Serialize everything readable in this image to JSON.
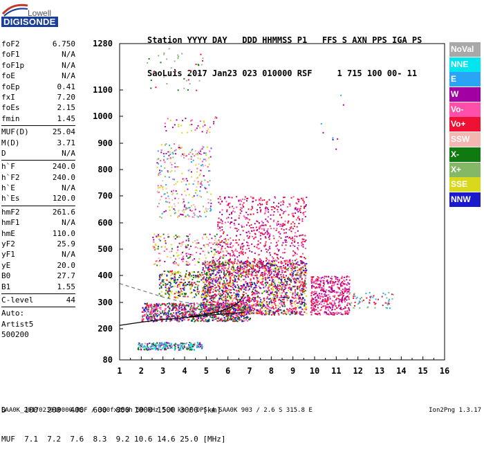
{
  "logo": {
    "brand": "Lowell",
    "product": "DIGISONDE"
  },
  "header": {
    "line1": "Station YYYY DAY   DDD HHMMSS P1   FFS S AXN PPS IGA PS",
    "line2": "SaoLuis 2017 Jan23 023 010000 RSF     1 715 100 00- 11"
  },
  "params_group1": [
    {
      "label": "foF2",
      "value": "6.750"
    },
    {
      "label": "foF1",
      "value": "N/A"
    },
    {
      "label": "foF1p",
      "value": "N/A"
    },
    {
      "label": "foE",
      "value": "N/A"
    },
    {
      "label": "foEp",
      "value": "0.41"
    },
    {
      "label": "fxI",
      "value": "7.20"
    },
    {
      "label": "foEs",
      "value": "2.15"
    },
    {
      "label": "fmin",
      "value": "1.45"
    }
  ],
  "params_group2": [
    {
      "label": "MUF(D)",
      "value": "25.04"
    },
    {
      "label": "M(D)",
      "value": "3.71"
    },
    {
      "label": "D",
      "value": "N/A"
    }
  ],
  "params_group3": [
    {
      "label": "h`F",
      "value": "240.0"
    },
    {
      "label": "h`F2",
      "value": "240.0"
    },
    {
      "label": "h`E",
      "value": "N/A"
    },
    {
      "label": "h`Es",
      "value": "120.0"
    }
  ],
  "params_group4": [
    {
      "label": "hmF2",
      "value": "261.6"
    },
    {
      "label": "hmF1",
      "value": "N/A"
    },
    {
      "label": "hmE",
      "value": "110.0"
    },
    {
      "label": "yF2",
      "value": "25.9"
    },
    {
      "label": "yF1",
      "value": "N/A"
    },
    {
      "label": "yE",
      "value": "20.0"
    },
    {
      "label": "B0",
      "value": "27.7"
    },
    {
      "label": "B1",
      "value": "1.55"
    }
  ],
  "c_level": {
    "label": "C-level",
    "value": "44"
  },
  "auto_lines": [
    "Auto:",
    "Artist5",
    "500200"
  ],
  "legend": [
    {
      "label": "NoVal",
      "color": "#a8a8a8"
    },
    {
      "label": "NNE",
      "color": "#00e5ee"
    },
    {
      "label": "E",
      "color": "#2aa4f4"
    },
    {
      "label": "W",
      "color": "#a300a3"
    },
    {
      "label": "Vo-",
      "color": "#ff4fa8"
    },
    {
      "label": "Vo+",
      "color": "#ee1133"
    },
    {
      "label": "SSW",
      "color": "#f4b6b0"
    },
    {
      "label": "X-",
      "color": "#0f7a0f"
    },
    {
      "label": "X+",
      "color": "#84b864"
    },
    {
      "label": "SSE",
      "color": "#d8d81c"
    },
    {
      "label": "NNW",
      "color": "#1a1acc"
    }
  ],
  "dmuf": {
    "d_line": "D    100  200  400  600  800 1000 1500 3000 [km]",
    "muf_line": "MUF  7.1  7.2  7.6  8.3  9.2 10.6 14.6 25.0 [MHz]"
  },
  "footer": "SAA0K_2017023010000.RSF / 300fx256h 50 kHz 5.0 km / DPS-4 SAA0K 903 / 2.6 S 315.8 E",
  "version": "Ion2Png 1.3.17",
  "chart_data": {
    "type": "scatter",
    "title": "",
    "xlabel": "",
    "ylabel": "",
    "xlim": [
      1,
      16
    ],
    "ylim": [
      80,
      1280
    ],
    "x_ticks": [
      1,
      2,
      3,
      4,
      5,
      6,
      7,
      8,
      9,
      10,
      11,
      12,
      13,
      14,
      15,
      16
    ],
    "y_ticks": [
      80,
      200,
      300,
      400,
      500,
      600,
      700,
      800,
      900,
      1000,
      1100,
      1280
    ],
    "y_scale": "nonlinear",
    "traces": [
      {
        "name": "O-trace profile",
        "color": "#000000",
        "style": "solid",
        "points": [
          [
            1.0,
            213
          ],
          [
            2.0,
            225
          ],
          [
            3.0,
            235
          ],
          [
            4.0,
            242
          ],
          [
            5.0,
            250
          ],
          [
            6.0,
            258
          ],
          [
            6.75,
            262
          ]
        ]
      },
      {
        "name": "F2 virtual trace",
        "color": "#000000",
        "style": "solid",
        "points": [
          [
            4.2,
            246
          ],
          [
            5.0,
            255
          ],
          [
            5.6,
            265
          ],
          [
            6.1,
            280
          ],
          [
            6.5,
            300
          ],
          [
            6.75,
            330
          ]
        ]
      },
      {
        "name": "X-trace",
        "color": "#777777",
        "style": "dashed",
        "points": [
          [
            1.0,
            370
          ],
          [
            2.0,
            345
          ],
          [
            3.0,
            320
          ],
          [
            4.0,
            300
          ],
          [
            5.0,
            290
          ],
          [
            5.6,
            285
          ]
        ]
      }
    ],
    "echo_regions": [
      {
        "x0": 2.0,
        "x1": 7.0,
        "y0": 230,
        "y1": 300,
        "density": 900,
        "colors": [
          "#ee1133",
          "#ff4fa8",
          "#0f7a0f",
          "#1a1acc"
        ]
      },
      {
        "x0": 4.8,
        "x1": 9.6,
        "y0": 255,
        "y1": 460,
        "density": 1800,
        "colors": [
          "#ee1133",
          "#ff4fa8",
          "#ee1133",
          "#a300a3",
          "#0f7a0f",
          "#1a1acc",
          "#d8d81c"
        ]
      },
      {
        "x0": 9.8,
        "x1": 11.6,
        "y0": 255,
        "y1": 400,
        "density": 450,
        "colors": [
          "#ee1133",
          "#ff4fa8",
          "#a300a3"
        ]
      },
      {
        "x0": 11.6,
        "x1": 13.6,
        "y0": 280,
        "y1": 340,
        "density": 60,
        "colors": [
          "#ee1133",
          "#2aa4f4",
          "#84b864"
        ]
      },
      {
        "x0": 2.8,
        "x1": 5.2,
        "y0": 320,
        "y1": 420,
        "density": 300,
        "colors": [
          "#1a1acc",
          "#0f7a0f",
          "#ee1133",
          "#d8d81c"
        ]
      },
      {
        "x0": 5.5,
        "x1": 9.6,
        "y0": 400,
        "y1": 700,
        "density": 700,
        "colors": [
          "#ee1133",
          "#ff4fa8",
          "#a300a3"
        ]
      },
      {
        "x0": 2.5,
        "x1": 6.0,
        "y0": 440,
        "y1": 560,
        "density": 240,
        "colors": [
          "#d8d81c",
          "#0f7a0f",
          "#ff4fa8",
          "#a300a3",
          "#f4b6b0"
        ]
      },
      {
        "x0": 2.7,
        "x1": 5.2,
        "y0": 620,
        "y1": 900,
        "density": 300,
        "colors": [
          "#ff4fa8",
          "#f4b6b0",
          "#d8d81c",
          "#84b864",
          "#a300a3",
          "#2aa4f4"
        ]
      },
      {
        "x0": 1.8,
        "x1": 4.8,
        "y0": 120,
        "y1": 150,
        "density": 260,
        "colors": [
          "#a300a3",
          "#2aa4f4",
          "#00e5ee",
          "#a8a8a8",
          "#0f7a0f"
        ]
      },
      {
        "x0": 2.2,
        "x1": 5.0,
        "y0": 1100,
        "y1": 1280,
        "density": 40,
        "colors": [
          "#a8a8a8",
          "#84b864",
          "#ee1133",
          "#0f7a0f"
        ]
      },
      {
        "x0": 3.0,
        "x1": 5.5,
        "y0": 940,
        "y1": 1000,
        "density": 40,
        "colors": [
          "#d8d81c",
          "#a300a3",
          "#ff4fa8"
        ]
      },
      {
        "x0": 10.0,
        "x1": 11.5,
        "y0": 820,
        "y1": 1090,
        "density": 8,
        "colors": [
          "#1a1acc",
          "#a300a3",
          "#2aa4f4"
        ]
      }
    ]
  }
}
